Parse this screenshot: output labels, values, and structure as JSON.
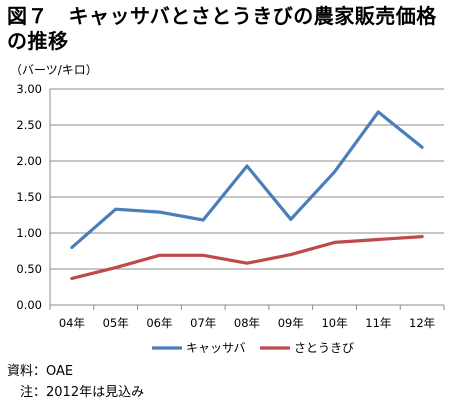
{
  "figure": {
    "title": "図７　キャッサバとさとうきびの農家販売価格の推移",
    "unit_label": "（バーツ/キロ）",
    "source": "資料：OAE",
    "note": "　注：2012年は見込み"
  },
  "chart_data": {
    "type": "line",
    "title": "図７　キャッサバとさとうきびの農家販売価格の推移",
    "ylabel": "（バーツ/キロ）",
    "xlabel": "",
    "categories": [
      "04年",
      "05年",
      "06年",
      "07年",
      "08年",
      "09年",
      "10年",
      "11年",
      "12年"
    ],
    "ylim": [
      0,
      3.0
    ],
    "yticks": [
      "0.00",
      "0.50",
      "1.00",
      "1.50",
      "2.00",
      "2.50",
      "3.00"
    ],
    "grid": true,
    "legend": "bottom",
    "series": [
      {
        "name": "キャッサバ",
        "color": "#4a7ebb",
        "values": [
          0.8,
          1.33,
          1.29,
          1.18,
          1.93,
          1.19,
          1.85,
          2.68,
          2.19
        ]
      },
      {
        "name": "さとうきび",
        "color": "#be4b48",
        "values": [
          0.37,
          0.52,
          0.69,
          0.69,
          0.58,
          0.7,
          0.87,
          0.91,
          0.95
        ]
      }
    ]
  }
}
